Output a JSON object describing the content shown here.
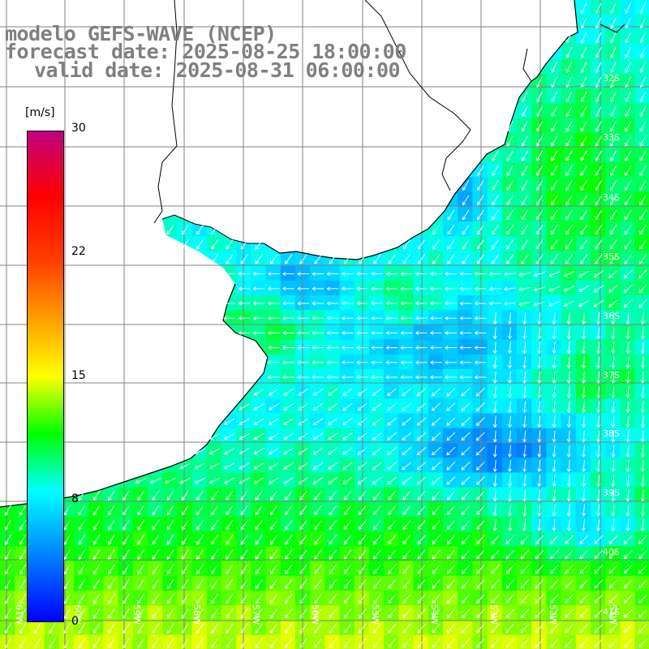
{
  "title": {
    "model": "modelo GEFS-WAVE (NCEP)",
    "forecast": "forecast date: 2025-08-25 18:00:00",
    "valid": "valid date: 2025-08-31 06:00:00"
  },
  "colorbar": {
    "units": "[m/s]",
    "ticks": [
      "30",
      "22",
      "15",
      "8",
      "0"
    ],
    "range": [
      0,
      30
    ],
    "stops": [
      {
        "value": 0,
        "color": "#0000ff"
      },
      {
        "value": 4,
        "color": "#0080ff"
      },
      {
        "value": 8,
        "color": "#00ffff"
      },
      {
        "value": 11.5,
        "color": "#00ff00"
      },
      {
        "value": 15,
        "color": "#ffff00"
      },
      {
        "value": 22,
        "color": "#ff4000"
      },
      {
        "value": 26,
        "color": "#ff0000"
      },
      {
        "value": 30,
        "color": "#c0007f"
      }
    ]
  },
  "map": {
    "lat_labels": [
      "32S",
      "33S",
      "34S",
      "35S",
      "36S",
      "37S",
      "38S",
      "39S",
      "40S",
      "41S"
    ],
    "lon_labels": [
      "61W",
      "60W",
      "59W",
      "58W",
      "57W",
      "56W",
      "55W",
      "54W",
      "53W",
      "52W",
      "51W"
    ],
    "land_color": "#ffffff",
    "grid_color": "#808080",
    "coast_color": "#000000",
    "arrow_color": "#ffffff"
  }
}
